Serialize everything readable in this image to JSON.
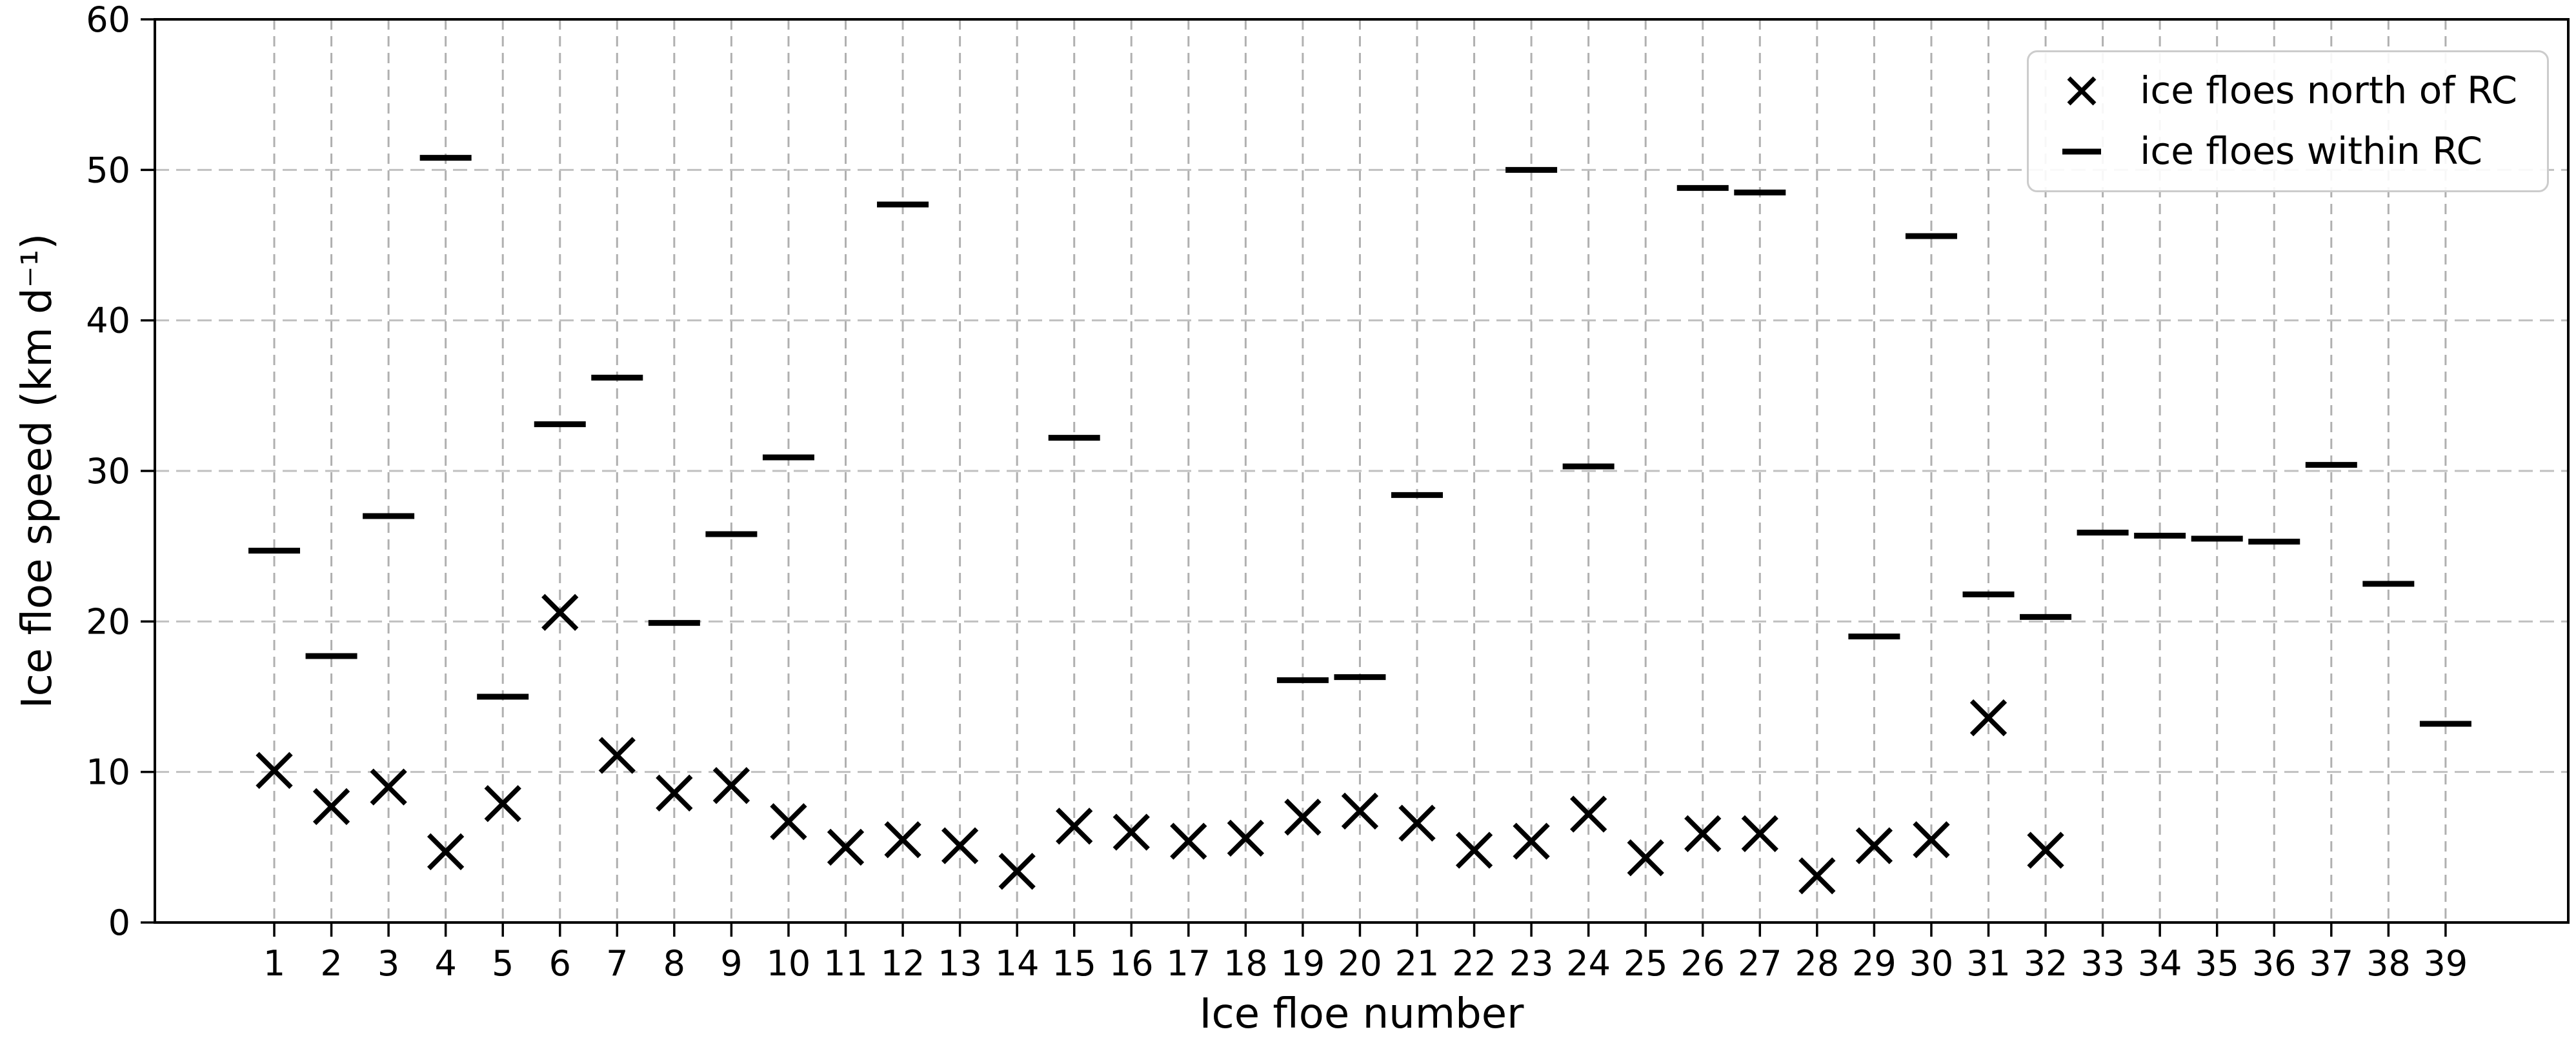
{
  "chart_data": {
    "type": "scatter",
    "title": "",
    "xlabel": "Ice floe number",
    "ylabel": "Ice floe speed (km d⁻¹)",
    "x": [
      1,
      2,
      3,
      4,
      5,
      6,
      7,
      8,
      9,
      10,
      11,
      12,
      13,
      14,
      15,
      16,
      17,
      18,
      19,
      20,
      21,
      22,
      23,
      24,
      25,
      26,
      27,
      28,
      29,
      30,
      31,
      32,
      33,
      34,
      35,
      36,
      37,
      38,
      39
    ],
    "ylim": [
      0,
      60
    ],
    "yticks": [
      0,
      10,
      20,
      30,
      40,
      50,
      60
    ],
    "grid": true,
    "legend_position": "upper right",
    "series": [
      {
        "name": "ice floes north of RC",
        "marker": "x",
        "points": [
          [
            1,
            10.1
          ],
          [
            2,
            7.7
          ],
          [
            3,
            9.0
          ],
          [
            4,
            4.7
          ],
          [
            5,
            7.9
          ],
          [
            6,
            20.6
          ],
          [
            7,
            11.1
          ],
          [
            8,
            8.6
          ],
          [
            9,
            9.1
          ],
          [
            10,
            6.7
          ],
          [
            11,
            5.0
          ],
          [
            12,
            5.5
          ],
          [
            13,
            5.1
          ],
          [
            14,
            3.4
          ],
          [
            15,
            6.4
          ],
          [
            16,
            6.0
          ],
          [
            17,
            5.4
          ],
          [
            18,
            5.6
          ],
          [
            19,
            7.0
          ],
          [
            20,
            7.4
          ],
          [
            21,
            6.6
          ],
          [
            22,
            4.8
          ],
          [
            23,
            5.4
          ],
          [
            24,
            7.2
          ],
          [
            25,
            4.3
          ],
          [
            26,
            5.9
          ],
          [
            27,
            5.9
          ],
          [
            28,
            3.1
          ],
          [
            29,
            5.1
          ],
          [
            30,
            5.5
          ],
          [
            31,
            13.6
          ],
          [
            32,
            4.8
          ]
        ]
      },
      {
        "name": "ice floes within RC",
        "marker": "dash",
        "points": [
          [
            1,
            24.7
          ],
          [
            2,
            17.7
          ],
          [
            3,
            27.0
          ],
          [
            4,
            50.8
          ],
          [
            5,
            15.0
          ],
          [
            6,
            33.1
          ],
          [
            7,
            36.2
          ],
          [
            8,
            19.9
          ],
          [
            9,
            25.8
          ],
          [
            10,
            30.9
          ],
          [
            12,
            47.7
          ],
          [
            15,
            32.2
          ],
          [
            19,
            16.1
          ],
          [
            20,
            16.3
          ],
          [
            21,
            28.4
          ],
          [
            23,
            50.0
          ],
          [
            24,
            30.3
          ],
          [
            26,
            48.8
          ],
          [
            27,
            48.5
          ],
          [
            29,
            19.0
          ],
          [
            30,
            45.6
          ],
          [
            31,
            21.8
          ],
          [
            32,
            20.3
          ],
          [
            33,
            25.9
          ],
          [
            34,
            25.7
          ],
          [
            35,
            25.5
          ],
          [
            36,
            25.3
          ],
          [
            37,
            30.4
          ],
          [
            38,
            22.5
          ],
          [
            39,
            13.2
          ]
        ]
      }
    ]
  },
  "colors": {
    "marker": "#000000",
    "spine": "#000000",
    "grid_vertical": "#b0b0b0",
    "grid_horizontal": "#c0c0c0",
    "legend_border": "#cccccc",
    "background": "#ffffff"
  }
}
